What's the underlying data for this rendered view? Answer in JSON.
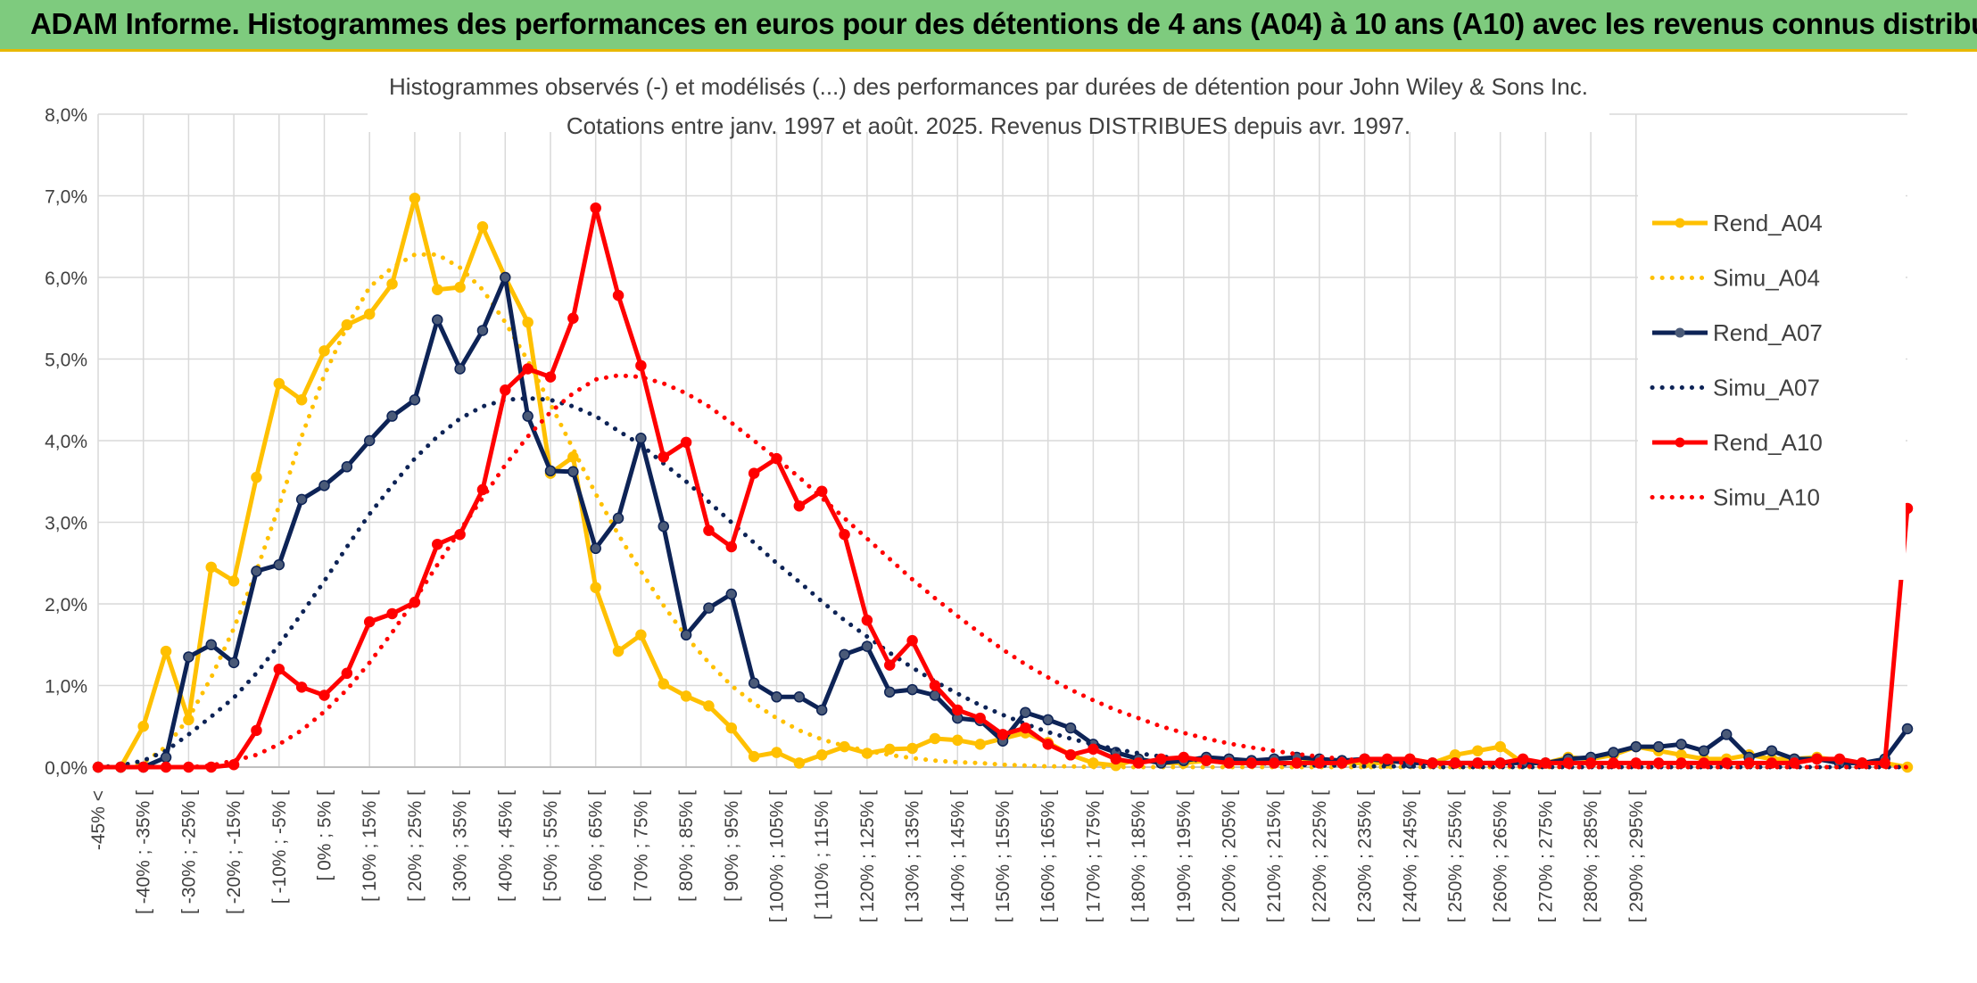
{
  "banner": {
    "title": "ADAM Informe. Histogrammes des performances en euros pour des détentions de 4 ans (A04) à 10 ans (A10) avec les revenus connus distribués",
    "background": "#7ecb7e",
    "accent": "#e8b800"
  },
  "chart_data": {
    "type": "line",
    "title": "Histogrammes observés (-) et modélisés (...) des performances par durées de détention pour John Wiley & Sons Inc.",
    "subtitle": "Cotations entre janv. 1997 et août. 2025. Revenus DISTRIBUES depuis avr. 1997.",
    "ylim": [
      0,
      8
    ],
    "yticks": [
      "0,0%",
      "1,0%",
      "2,0%",
      "3,0%",
      "4,0%",
      "5,0%",
      "6,0%",
      "7,0%",
      "8,0%"
    ],
    "grid": true,
    "legend_position": "right",
    "category_labels": [
      "-45% <",
      "[ -40% ; -35% [",
      "[ -30% ; -25% [",
      "[ -20% ; -15% [",
      "[ -10% ; -5% [",
      "[ 0% ; 5% [",
      "[ 10% ; 15% [",
      "[ 20% ; 25% [",
      "[ 30% ; 35% [",
      "[ 40% ; 45% [",
      "[ 50% ; 55% [",
      "[ 60% ; 65% [",
      "[ 70% ; 75% [",
      "[ 80% ; 85% [",
      "[ 90% ; 95% [",
      "[ 100% ; 105% [",
      "[ 110% ; 115% [",
      "[ 120% ; 125% [",
      "[ 130% ; 135% [",
      "[ 140% ; 145% [",
      "[ 150% ; 155% [",
      "[ 160% ; 165% [",
      "[ 170% ; 175% [",
      "[ 180% ; 185% [",
      "[ 190% ; 195% [",
      "[ 200% ; 205% [",
      "[ 210% ; 215% [",
      "[ 220% ; 225% [",
      "[ 230% ; 235% [",
      "[ 240% ; 245% [",
      "[ 250% ; 255% [",
      "[ 260% ; 265% [",
      "[ 270% ; 275% [",
      "[ 280% ; 285% [",
      "[ 290% ; 295% ["
    ],
    "series": [
      {
        "name": "Rend_A04",
        "style": "solid",
        "color": "#ffc000",
        "values": [
          0.0,
          0.0,
          0.5,
          1.42,
          0.58,
          2.45,
          2.28,
          3.55,
          4.7,
          4.5,
          5.1,
          5.42,
          5.55,
          5.92,
          6.97,
          5.85,
          5.88,
          6.62,
          6.0,
          5.45,
          3.6,
          3.8,
          2.2,
          1.42,
          1.62,
          1.02,
          0.87,
          0.75,
          0.48,
          0.13,
          0.18,
          0.05,
          0.15,
          0.25,
          0.17,
          0.22,
          0.23,
          0.35,
          0.33,
          0.28,
          0.35,
          0.42,
          0.3,
          0.15,
          0.05,
          0.02,
          0.1,
          0.05,
          0.05,
          0.08,
          0.05,
          0.05,
          0.05,
          0.05,
          0.08,
          0.05,
          0.05,
          0.05,
          0.1,
          0.05,
          0.15,
          0.2,
          0.25,
          0.05,
          0.05,
          0.12,
          0.1,
          0.15,
          0.25,
          0.2,
          0.15,
          0.1,
          0.1,
          0.15,
          0.1,
          0.1,
          0.12,
          0.08,
          0.05,
          0.05,
          0.0
        ]
      },
      {
        "name": "Simu_A04",
        "style": "dotted",
        "color": "#ffc000",
        "values": [
          0.0,
          0.0,
          0.05,
          0.25,
          0.6,
          1.1,
          1.7,
          2.4,
          3.2,
          4.05,
          4.8,
          5.4,
          5.88,
          6.12,
          6.28,
          6.28,
          6.12,
          5.85,
          5.45,
          4.98,
          4.45,
          3.9,
          3.35,
          2.85,
          2.4,
          1.98,
          1.6,
          1.28,
          1.0,
          0.78,
          0.6,
          0.45,
          0.34,
          0.26,
          0.2,
          0.15,
          0.11,
          0.08,
          0.06,
          0.05,
          0.03,
          0.02,
          0.01,
          0.01,
          0.0,
          0.0,
          0.0,
          0.0,
          0.0,
          0.0,
          0.0,
          0.0,
          0.0,
          0.0,
          0.0,
          0.0,
          0.0,
          0.0,
          0.0,
          0.0,
          0.0,
          0.0,
          0.0,
          0.0,
          0.0,
          0.0,
          0.0,
          0.0,
          0.0,
          0.0,
          0.0,
          0.0,
          0.0,
          0.0,
          0.0,
          0.0,
          0.0,
          0.0,
          0.0,
          0.0,
          0.0
        ]
      },
      {
        "name": "Rend_A07",
        "style": "solid",
        "color": "#0d2356",
        "values": [
          0.0,
          0.0,
          0.0,
          0.12,
          1.35,
          1.5,
          1.28,
          2.4,
          2.48,
          3.28,
          3.45,
          3.68,
          4.0,
          4.3,
          4.5,
          5.48,
          4.88,
          5.35,
          6.0,
          4.3,
          3.63,
          3.62,
          2.68,
          3.05,
          4.03,
          2.95,
          1.62,
          1.95,
          2.12,
          1.03,
          0.86,
          0.86,
          0.7,
          1.38,
          1.48,
          0.92,
          0.95,
          0.88,
          0.6,
          0.57,
          0.32,
          0.67,
          0.58,
          0.48,
          0.28,
          0.18,
          0.1,
          0.05,
          0.08,
          0.12,
          0.1,
          0.08,
          0.1,
          0.12,
          0.1,
          0.08,
          0.1,
          0.08,
          0.05,
          0.05,
          0.05,
          0.05,
          0.05,
          0.05,
          0.05,
          0.1,
          0.12,
          0.18,
          0.25,
          0.25,
          0.28,
          0.2,
          0.4,
          0.12,
          0.2,
          0.1,
          0.1,
          0.05,
          0.05,
          0.1,
          0.47
        ]
      },
      {
        "name": "Simu_A07",
        "style": "dotted",
        "color": "#0d2356",
        "values": [
          0.0,
          0.02,
          0.08,
          0.2,
          0.4,
          0.62,
          0.85,
          1.15,
          1.5,
          1.88,
          2.28,
          2.7,
          3.1,
          3.45,
          3.78,
          4.05,
          4.27,
          4.42,
          4.5,
          4.52,
          4.5,
          4.42,
          4.3,
          4.12,
          3.95,
          3.72,
          3.5,
          3.25,
          3.0,
          2.75,
          2.5,
          2.27,
          2.03,
          1.8,
          1.6,
          1.4,
          1.22,
          1.05,
          0.9,
          0.76,
          0.64,
          0.53,
          0.43,
          0.35,
          0.28,
          0.22,
          0.17,
          0.13,
          0.1,
          0.08,
          0.06,
          0.05,
          0.04,
          0.03,
          0.02,
          0.02,
          0.01,
          0.01,
          0.01,
          0.0,
          0.0,
          0.0,
          0.0,
          0.0,
          0.0,
          0.0,
          0.0,
          0.0,
          0.0,
          0.0,
          0.0,
          0.0,
          0.0,
          0.0,
          0.0,
          0.0,
          0.0,
          0.0,
          0.0,
          0.0,
          0.0
        ]
      },
      {
        "name": "Rend_A10",
        "style": "solid",
        "color": "#ff0000",
        "values": [
          0.0,
          0.0,
          0.0,
          0.0,
          0.0,
          0.0,
          0.03,
          0.45,
          1.2,
          0.98,
          0.88,
          1.15,
          1.78,
          1.88,
          2.02,
          2.73,
          2.85,
          3.4,
          4.62,
          4.88,
          4.78,
          5.5,
          6.85,
          5.78,
          4.92,
          3.8,
          3.98,
          2.9,
          2.7,
          3.6,
          3.78,
          3.2,
          3.38,
          2.85,
          1.8,
          1.25,
          1.55,
          1.0,
          0.7,
          0.6,
          0.4,
          0.48,
          0.28,
          0.15,
          0.22,
          0.1,
          0.05,
          0.1,
          0.12,
          0.08,
          0.05,
          0.05,
          0.05,
          0.05,
          0.05,
          0.05,
          0.1,
          0.1,
          0.1,
          0.05,
          0.05,
          0.05,
          0.05,
          0.1,
          0.05,
          0.05,
          0.05,
          0.05,
          0.05,
          0.05,
          0.05,
          0.05,
          0.05,
          0.05,
          0.05,
          0.05,
          0.1,
          0.1,
          0.05,
          0.05,
          3.17
        ]
      },
      {
        "name": "Simu_A10",
        "style": "dotted",
        "color": "#ff0000",
        "values": [
          0.0,
          0.0,
          0.0,
          0.0,
          0.0,
          0.02,
          0.08,
          0.15,
          0.28,
          0.45,
          0.68,
          0.95,
          1.28,
          1.65,
          2.05,
          2.48,
          2.9,
          3.3,
          3.7,
          4.05,
          4.35,
          4.58,
          4.75,
          4.8,
          4.78,
          4.7,
          4.58,
          4.42,
          4.22,
          4.0,
          3.78,
          3.55,
          3.3,
          3.05,
          2.8,
          2.55,
          2.3,
          2.07,
          1.85,
          1.64,
          1.44,
          1.26,
          1.1,
          0.95,
          0.82,
          0.7,
          0.6,
          0.5,
          0.42,
          0.35,
          0.29,
          0.24,
          0.2,
          0.16,
          0.13,
          0.1,
          0.08,
          0.06,
          0.05,
          0.04,
          0.03,
          0.02,
          0.02,
          0.01,
          0.01,
          0.0,
          0.0,
          0.0,
          0.0,
          0.0,
          0.0,
          0.0,
          0.0,
          0.0,
          0.0,
          0.0,
          0.0,
          0.0,
          0.0,
          0.0,
          0.0
        ]
      }
    ]
  }
}
